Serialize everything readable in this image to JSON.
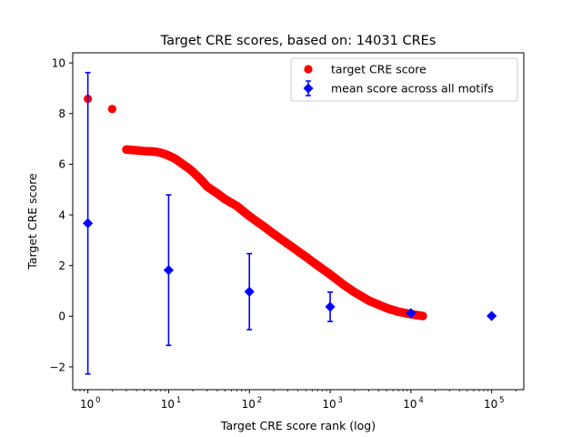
{
  "chart_data": {
    "type": "scatter",
    "title": "Target CRE scores, based on: 14031 CREs",
    "xlabel": "Target CRE score rank (log)",
    "ylabel": "Target CRE score",
    "x_scale": "log",
    "xlim": [
      0.65,
      250000
    ],
    "ylim": [
      -2.9,
      10.4
    ],
    "x_ticks": [
      {
        "base": "10",
        "exp": "0",
        "value": 1
      },
      {
        "base": "10",
        "exp": "1",
        "value": 10
      },
      {
        "base": "10",
        "exp": "2",
        "value": 100
      },
      {
        "base": "10",
        "exp": "3",
        "value": 1000
      },
      {
        "base": "10",
        "exp": "4",
        "value": 10000
      },
      {
        "base": "10",
        "exp": "5",
        "value": 100000
      }
    ],
    "y_ticks": [
      "−2",
      "0",
      "2",
      "4",
      "6",
      "8",
      "10"
    ],
    "y_tick_values": [
      -2,
      0,
      2,
      4,
      6,
      8,
      10
    ],
    "grid": false,
    "legend": {
      "placement": "top-right",
      "entries": [
        {
          "label": "target CRE score",
          "color": "#ff0000",
          "marker": "circle"
        },
        {
          "label": "mean score across all motifs",
          "color": "#0000ff",
          "marker": "diamond-errorbar"
        }
      ]
    },
    "series": [
      {
        "name": "target CRE score",
        "color": "#ff0000",
        "marker": "circle",
        "points": [
          [
            1,
            8.58
          ],
          [
            2,
            8.18
          ],
          [
            3,
            6.58
          ],
          [
            4,
            6.55
          ],
          [
            5,
            6.52
          ],
          [
            6,
            6.51
          ],
          [
            7,
            6.49
          ],
          [
            8,
            6.45
          ],
          [
            9,
            6.4
          ],
          [
            10,
            6.34
          ],
          [
            12,
            6.22
          ],
          [
            15,
            6.0
          ],
          [
            18,
            5.82
          ],
          [
            20,
            5.7
          ],
          [
            25,
            5.4
          ],
          [
            30,
            5.12
          ],
          [
            40,
            4.85
          ],
          [
            50,
            4.62
          ],
          [
            70,
            4.35
          ],
          [
            100,
            3.95
          ],
          [
            150,
            3.55
          ],
          [
            200,
            3.25
          ],
          [
            300,
            2.85
          ],
          [
            500,
            2.35
          ],
          [
            700,
            2.0
          ],
          [
            1000,
            1.65
          ],
          [
            1500,
            1.22
          ],
          [
            2000,
            0.95
          ],
          [
            3000,
            0.62
          ],
          [
            5000,
            0.32
          ],
          [
            7000,
            0.18
          ],
          [
            10000,
            0.08
          ],
          [
            12000,
            0.04
          ],
          [
            14031,
            0.01
          ]
        ]
      },
      {
        "name": "mean score across all motifs",
        "color": "#0000ff",
        "marker": "diamond",
        "points": [
          {
            "x": 1,
            "y": 3.67,
            "err": 5.95
          },
          {
            "x": 10,
            "y": 1.82,
            "err": 2.97
          },
          {
            "x": 100,
            "y": 0.97,
            "err": 1.5
          },
          {
            "x": 1000,
            "y": 0.37,
            "err": 0.58
          },
          {
            "x": 10000,
            "y": 0.12,
            "err": 0.08
          },
          {
            "x": 100000,
            "y": 0.01,
            "err": 0
          }
        ]
      }
    ]
  }
}
